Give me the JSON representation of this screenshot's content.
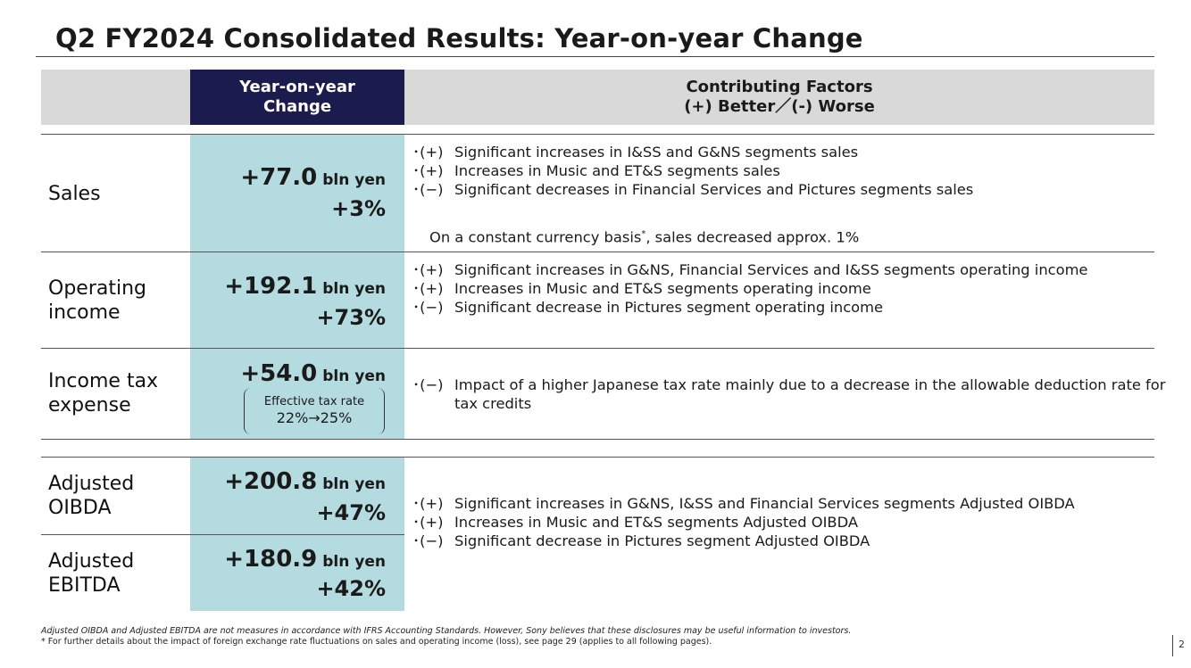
{
  "title": "Q2 FY2024 Consolidated Results: Year-on-year Change",
  "header": {
    "yoy": "Year-on-year\nChange",
    "factors": "Contributing Factors\n(+) Better／(-) Worse"
  },
  "rows": [
    {
      "label": "Sales",
      "value": "+77.0",
      "unit": "bln yen",
      "pct": "+3%",
      "factors": [
        {
          "mark": "･(+)",
          "text": "Significant increases in I&SS and G&NS segments sales"
        },
        {
          "mark": "･(+)",
          "text": "Increases in Music and ET&S segments sales"
        },
        {
          "mark": "･(−)",
          "text": "Significant decreases in Financial Services and Pictures segments sales"
        }
      ],
      "note": "On a constant currency basis",
      "note_mark": "*",
      "note_rest": ", sales decreased approx. 1%"
    },
    {
      "label": "Operating\nincome",
      "value": "+192.1",
      "unit": "bln yen",
      "pct": "+73%",
      "factors": [
        {
          "mark": "･(+)",
          "text": "Significant increases in G&NS, Financial Services and I&SS segments operating income"
        },
        {
          "mark": "･(+)",
          "text": "Increases in Music and ET&S segments operating income"
        },
        {
          "mark": "･(−)",
          "text": "Significant decrease in Pictures segment operating income"
        }
      ]
    },
    {
      "label": "Income tax\nexpense",
      "value": "+54.0",
      "unit": "bln yen",
      "tax_note_line1": "Effective tax rate",
      "tax_note_line2": "22%→25%",
      "factors": [
        {
          "mark": "･(−)",
          "text": "Impact of a higher Japanese tax rate mainly due to a decrease in the allowable deduction rate for tax credits"
        }
      ]
    },
    {
      "label": "Adjusted\nOIBDA",
      "value": "+200.8",
      "unit": "bln yen",
      "pct": "+47%"
    },
    {
      "label": "Adjusted\nEBITDA",
      "value": "+180.9",
      "unit": "bln yen",
      "pct": "+42%"
    }
  ],
  "adjusted_factors": [
    {
      "mark": "･(+)",
      "text": "Significant increases in G&NS, I&SS and Financial Services segments Adjusted OIBDA"
    },
    {
      "mark": "･(+)",
      "text": "Increases in Music and ET&S segments Adjusted OIBDA"
    },
    {
      "mark": "･(−)",
      "text": "Significant decrease in Pictures segment Adjusted OIBDA"
    }
  ],
  "footnotes": [
    "Adjusted OIBDA and Adjusted EBITDA are not measures in accordance with IFRS Accounting Standards. However, Sony believes that these disclosures may be useful information to investors.",
    "* For further details about the impact of foreign exchange rate fluctuations on sales and operating income (loss), see page 29 (applies to all following pages)."
  ],
  "page_number": "2"
}
